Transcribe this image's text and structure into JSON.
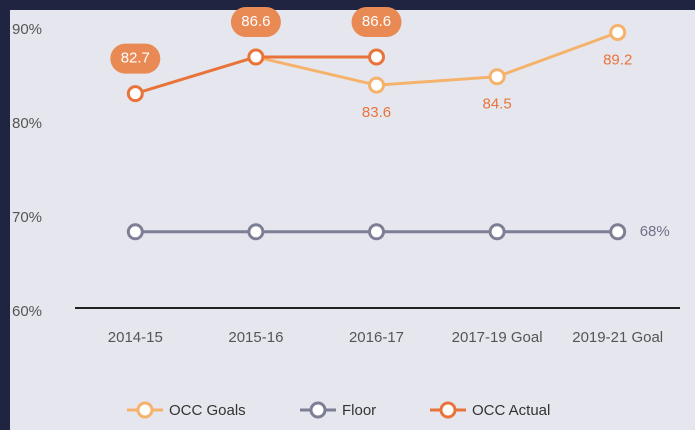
{
  "chart_data": {
    "type": "line",
    "categories": [
      "2014-15",
      "2015-16",
      "2016-17",
      "2017-19 Goal",
      "2019-21 Goal"
    ],
    "series": [
      {
        "name": "OCC Goals",
        "color": "#f5b26b",
        "values": [
          null,
          86.6,
          83.6,
          84.5,
          89.2
        ],
        "value_labels": [
          null,
          null,
          "83.6",
          "84.5",
          "89.2"
        ]
      },
      {
        "name": "Floor",
        "color": "#7c7f95",
        "values": [
          68,
          68,
          68,
          68,
          68
        ],
        "value_labels": [
          null,
          null,
          null,
          null,
          "68%"
        ]
      },
      {
        "name": "OCC Actual",
        "color": "#e8743b",
        "values": [
          82.7,
          86.6,
          86.6,
          null,
          null
        ],
        "value_labels": [
          "82.7",
          "86.6",
          "86.6",
          null,
          null
        ]
      }
    ],
    "ylim": [
      60,
      90
    ],
    "yticks": [
      {
        "value": 60,
        "label": "60%"
      },
      {
        "value": 70,
        "label": "70%"
      },
      {
        "value": 80,
        "label": "80%"
      },
      {
        "value": 90,
        "label": "90%"
      }
    ],
    "legend": "bottom"
  }
}
